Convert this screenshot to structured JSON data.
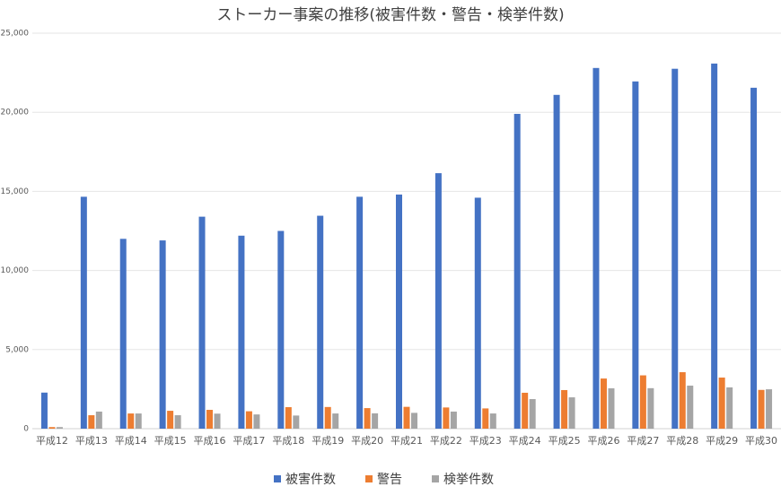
{
  "chart_data": {
    "type": "bar",
    "title": "ストーカー事案の推移(被害件数・警告・検挙件数)",
    "categories": [
      "平成12",
      "平成13",
      "平成14",
      "平成15",
      "平成16",
      "平成17",
      "平成18",
      "平成19",
      "平成20",
      "平成21",
      "平成22",
      "平成23",
      "平成24",
      "平成25",
      "平成26",
      "平成27",
      "平成28",
      "平成29",
      "平成30"
    ],
    "series": [
      {
        "name": "被害件数",
        "color": "#4472c4",
        "values": [
          2280,
          14660,
          12000,
          11900,
          13400,
          12200,
          12500,
          13460,
          14660,
          14800,
          16150,
          14600,
          19900,
          21100,
          22800,
          21950,
          22750,
          23080,
          21550
        ]
      },
      {
        "name": "警告",
        "color": "#ed7d31",
        "values": [
          100,
          850,
          960,
          1130,
          1190,
          1100,
          1360,
          1370,
          1300,
          1380,
          1340,
          1280,
          2270,
          2440,
          3170,
          3370,
          3570,
          3230,
          2450
        ]
      },
      {
        "name": "検挙件数",
        "color": "#a5a5a5",
        "values": [
          100,
          1080,
          960,
          850,
          950,
          900,
          830,
          960,
          970,
          1000,
          1080,
          960,
          1870,
          1980,
          2550,
          2560,
          2720,
          2610,
          2490
        ]
      }
    ],
    "ylim": [
      0,
      25000
    ],
    "yticks": [
      0,
      {
        "value": 5000,
        "label": "5,000"
      },
      {
        "value": 10000,
        "label": "10,000"
      },
      {
        "value": 15000,
        "label": "15,000"
      },
      {
        "value": 20000,
        "label": "20,000"
      },
      {
        "value": 25000,
        "label": "25,000"
      }
    ],
    "grid": true,
    "legend": "bottom"
  }
}
